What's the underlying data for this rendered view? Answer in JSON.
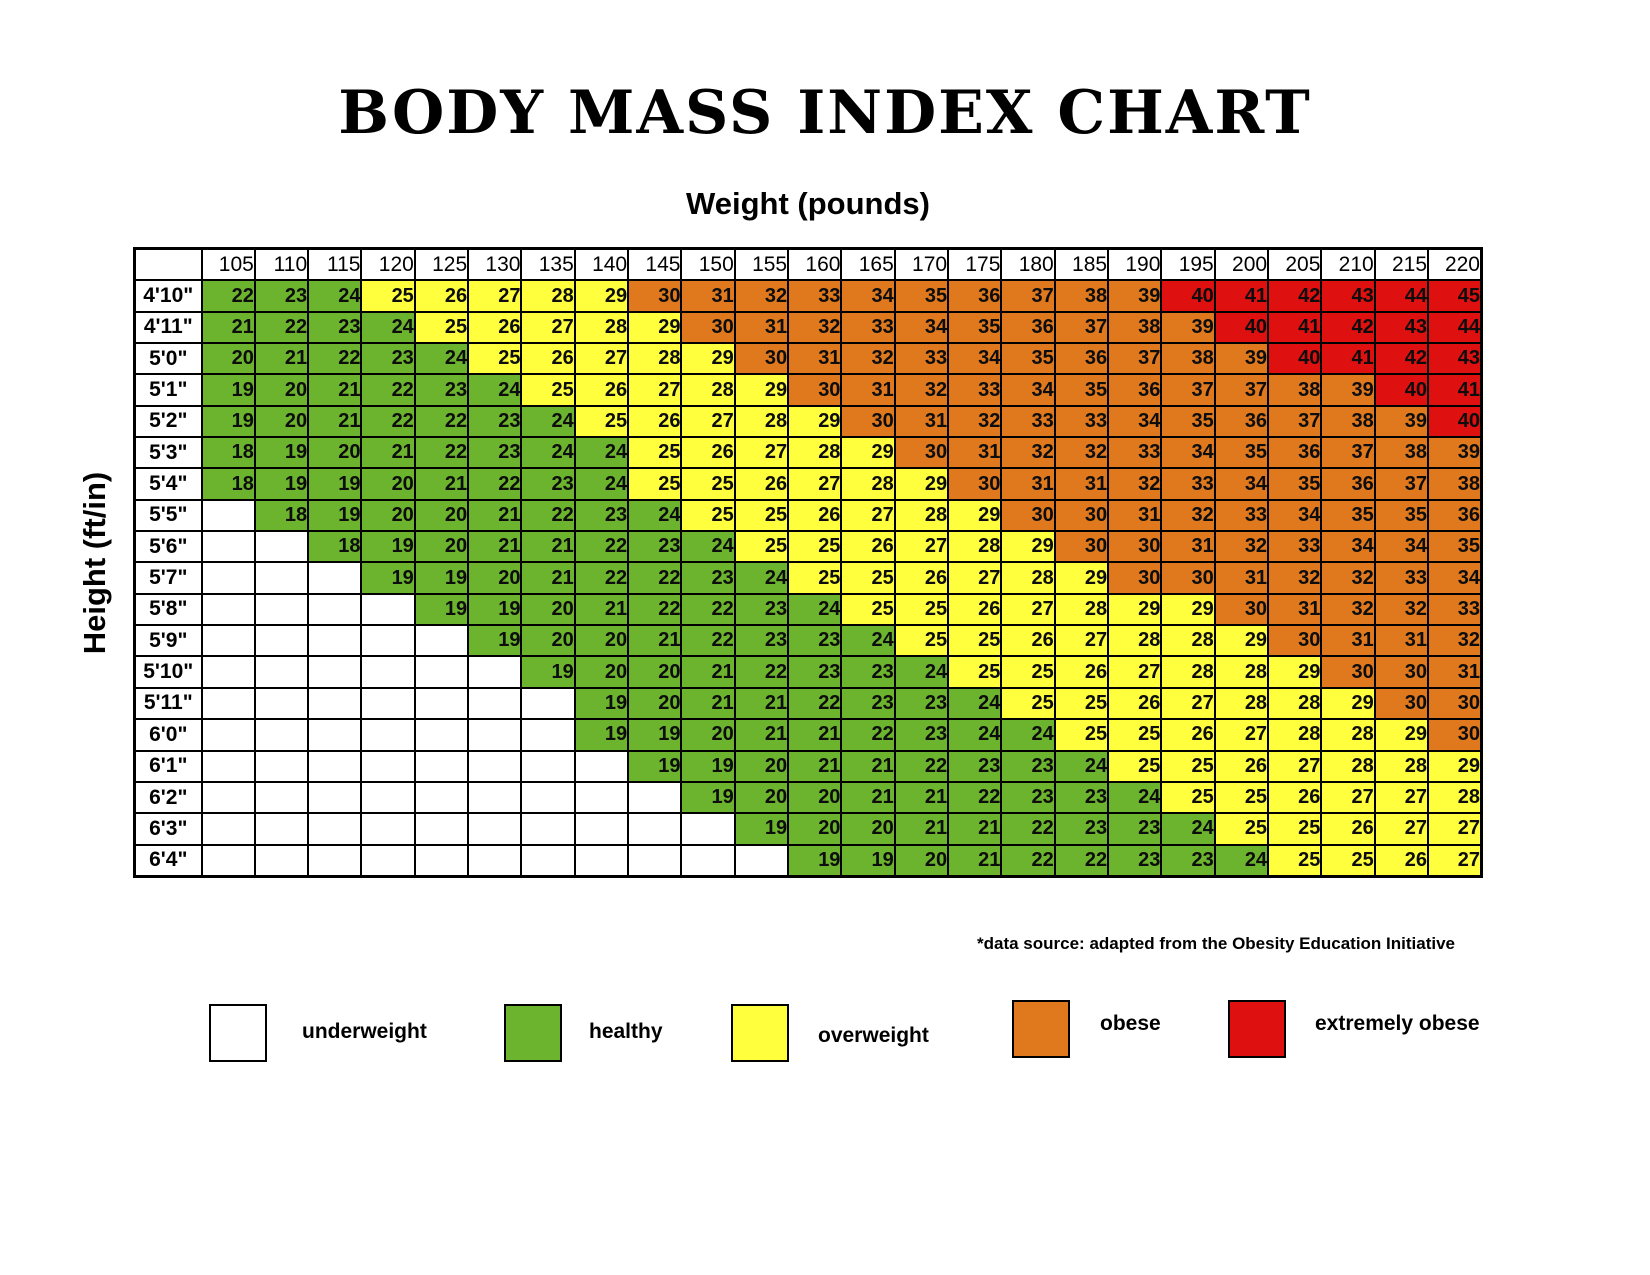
{
  "chart_data": {
    "type": "heatmap",
    "title": "BODY MASS INDEX CHART",
    "xlabel": "Weight (pounds)",
    "ylabel": "Height (ft/in)",
    "footnote": "*data source: adapted from the Obesity Education Initiative",
    "legend_position": "bottom",
    "weights": [
      105,
      110,
      115,
      120,
      125,
      130,
      135,
      140,
      145,
      150,
      155,
      160,
      165,
      170,
      175,
      180,
      185,
      190,
      195,
      200,
      205,
      210,
      215,
      220
    ],
    "rows": [
      {
        "height": "4'10\"",
        "values": [
          22,
          23,
          24,
          25,
          26,
          27,
          28,
          29,
          30,
          31,
          32,
          33,
          34,
          35,
          36,
          37,
          38,
          39,
          40,
          41,
          42,
          43,
          44,
          45
        ]
      },
      {
        "height": "4'11\"",
        "values": [
          21,
          22,
          23,
          24,
          25,
          26,
          27,
          28,
          29,
          30,
          31,
          32,
          33,
          34,
          35,
          36,
          37,
          38,
          39,
          40,
          41,
          42,
          43,
          44
        ]
      },
      {
        "height": "5'0\"",
        "values": [
          20,
          21,
          22,
          23,
          24,
          25,
          26,
          27,
          28,
          29,
          30,
          31,
          32,
          33,
          34,
          35,
          36,
          37,
          38,
          39,
          40,
          41,
          42,
          43
        ]
      },
      {
        "height": "5'1\"",
        "values": [
          19,
          20,
          21,
          22,
          23,
          24,
          25,
          26,
          27,
          28,
          29,
          30,
          31,
          32,
          33,
          34,
          35,
          36,
          37,
          37,
          38,
          39,
          40,
          41
        ]
      },
      {
        "height": "5'2\"",
        "values": [
          19,
          20,
          21,
          22,
          22,
          23,
          24,
          25,
          26,
          27,
          28,
          29,
          30,
          31,
          32,
          33,
          33,
          34,
          35,
          36,
          37,
          38,
          39,
          40
        ]
      },
      {
        "height": "5'3\"",
        "values": [
          18,
          19,
          20,
          21,
          22,
          23,
          24,
          24,
          25,
          26,
          27,
          28,
          29,
          30,
          31,
          32,
          32,
          33,
          34,
          35,
          36,
          37,
          38,
          39
        ]
      },
      {
        "height": "5'4\"",
        "values": [
          18,
          19,
          19,
          20,
          21,
          22,
          23,
          24,
          25,
          25,
          26,
          27,
          28,
          29,
          30,
          31,
          31,
          32,
          33,
          34,
          35,
          36,
          37,
          38
        ]
      },
      {
        "height": "5'5\"",
        "values": [
          null,
          18,
          19,
          20,
          20,
          21,
          22,
          23,
          24,
          25,
          25,
          26,
          27,
          28,
          29,
          30,
          30,
          31,
          32,
          33,
          34,
          35,
          35,
          36
        ]
      },
      {
        "height": "5'6\"",
        "values": [
          null,
          null,
          18,
          19,
          20,
          21,
          21,
          22,
          23,
          24,
          25,
          25,
          26,
          27,
          28,
          29,
          30,
          30,
          31,
          32,
          33,
          34,
          34,
          35
        ]
      },
      {
        "height": "5'7\"",
        "values": [
          null,
          null,
          null,
          19,
          19,
          20,
          21,
          22,
          22,
          23,
          24,
          25,
          25,
          26,
          27,
          28,
          29,
          30,
          30,
          31,
          32,
          32,
          33,
          34
        ]
      },
      {
        "height": "5'8\"",
        "values": [
          null,
          null,
          null,
          null,
          19,
          19,
          20,
          21,
          22,
          22,
          23,
          24,
          25,
          25,
          26,
          27,
          28,
          29,
          29,
          30,
          31,
          32,
          32,
          33
        ]
      },
      {
        "height": "5'9\"",
        "values": [
          null,
          null,
          null,
          null,
          null,
          19,
          20,
          20,
          21,
          22,
          23,
          23,
          24,
          25,
          25,
          26,
          27,
          28,
          28,
          29,
          30,
          31,
          31,
          32
        ]
      },
      {
        "height": "5'10\"",
        "values": [
          null,
          null,
          null,
          null,
          null,
          null,
          19,
          20,
          20,
          21,
          22,
          23,
          23,
          24,
          25,
          25,
          26,
          27,
          28,
          28,
          29,
          30,
          30,
          31
        ]
      },
      {
        "height": "5'11\"",
        "values": [
          null,
          null,
          null,
          null,
          null,
          null,
          null,
          19,
          20,
          21,
          21,
          22,
          23,
          23,
          24,
          25,
          25,
          26,
          27,
          28,
          28,
          29,
          30,
          30
        ]
      },
      {
        "height": "6'0\"",
        "values": [
          null,
          null,
          null,
          null,
          null,
          null,
          null,
          19,
          19,
          20,
          21,
          21,
          22,
          23,
          24,
          24,
          25,
          25,
          26,
          27,
          28,
          28,
          29,
          30
        ]
      },
      {
        "height": "6'1\"",
        "values": [
          null,
          null,
          null,
          null,
          null,
          null,
          null,
          null,
          19,
          19,
          20,
          21,
          21,
          22,
          23,
          23,
          24,
          25,
          25,
          26,
          27,
          28,
          28,
          29
        ]
      },
      {
        "height": "6'2\"",
        "values": [
          null,
          null,
          null,
          null,
          null,
          null,
          null,
          null,
          null,
          19,
          20,
          20,
          21,
          21,
          22,
          23,
          23,
          24,
          25,
          25,
          26,
          27,
          27,
          28
        ]
      },
      {
        "height": "6'3\"",
        "values": [
          null,
          null,
          null,
          null,
          null,
          null,
          null,
          null,
          null,
          null,
          19,
          20,
          20,
          21,
          21,
          22,
          23,
          23,
          24,
          25,
          25,
          26,
          27,
          27
        ]
      },
      {
        "height": "6'4\"",
        "values": [
          null,
          null,
          null,
          null,
          null,
          null,
          null,
          null,
          null,
          null,
          null,
          19,
          19,
          20,
          21,
          22,
          22,
          23,
          23,
          24,
          25,
          25,
          26,
          27
        ]
      }
    ],
    "category_rules": {
      "healthy_max": 24,
      "overweight_max": 29,
      "obese_max": 39
    },
    "colors": {
      "underweight": "#FFFFFF",
      "healthy": "#6CB42D",
      "overweight": "#FFFF3D",
      "obese": "#E0791E",
      "extremely_obese": "#DE1110"
    },
    "legend": [
      {
        "label": "underweight",
        "category": "underweight",
        "color": "#FFFFFF"
      },
      {
        "label": "healthy",
        "category": "healthy",
        "color": "#6CB42D"
      },
      {
        "label": "overweight",
        "category": "overweight",
        "color": "#FFFF3D"
      },
      {
        "label": "obese",
        "category": "obese",
        "color": "#E0791E"
      },
      {
        "label": "extremely obese",
        "category": "extremely_obese",
        "color": "#DE1110"
      }
    ]
  }
}
